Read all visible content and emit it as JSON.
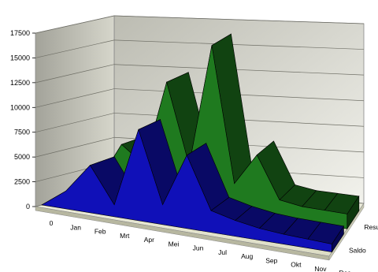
{
  "chart_data": {
    "type": "area",
    "style": "3d-ribbon",
    "categories": [
      "0",
      "Jan",
      "Feb",
      "Mrt",
      "Apr",
      "Mei",
      "Jun",
      "Jul",
      "Aug",
      "Sep",
      "Okt",
      "Nov",
      "Dec"
    ],
    "y_ticks": [
      "0",
      "2500",
      "5000",
      "7500",
      "10000",
      "12500",
      "15000",
      "17500"
    ],
    "ylim": [
      0,
      17500
    ],
    "grid": true,
    "series": [
      {
        "name": "Saldo",
        "color": "#1010b8",
        "values": [
          0,
          1800,
          4800,
          1200,
          9200,
          2000,
          7400,
          2200,
          1600,
          1200,
          1000,
          900,
          800
        ]
      },
      {
        "name": "Resultaat",
        "color": "#1f7a1f",
        "values": [
          0,
          1800,
          5800,
          4000,
          12700,
          4500,
          17000,
          3200,
          6400,
          2100,
          1700,
          1600,
          1500
        ]
      }
    ],
    "depth_labels": [
      "Saldo",
      "Resultaat"
    ]
  }
}
